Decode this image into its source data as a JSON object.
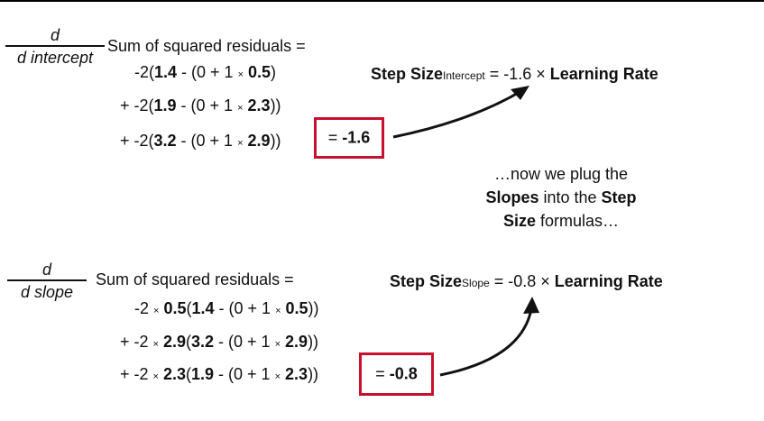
{
  "colors": {
    "box_border": "#c8102e",
    "text": "#111111"
  },
  "intercept": {
    "fraction": {
      "num": "d",
      "den": "d intercept"
    },
    "header": "Sum of squared residuals =",
    "line1": {
      "a": "-2(",
      "b": "1.4",
      "c": " - (0 + 1 ",
      "x": "×",
      "d": " ",
      "e": "0.5",
      "f": ")"
    },
    "line2": {
      "a": "+ -2(",
      "b": "1.9",
      "c": " - (0 + 1 ",
      "x": "×",
      "d": " ",
      "e": "2.3",
      "f": "))"
    },
    "line3": {
      "a": "+ -2(",
      "b": "3.2",
      "c": " - (0 + 1 ",
      "x": "×",
      "d": " ",
      "e": "2.9",
      "f": "))"
    },
    "result": {
      "eq": "= ",
      "val": "-1.6"
    },
    "step": {
      "label": "Step Size",
      "sub": "Intercept",
      "mid": " = -1.6 × ",
      "lr": "Learning Rate"
    }
  },
  "note": {
    "l1": "…now we plug the",
    "l2a": "Slopes",
    "l2b": " into the ",
    "l2c": "Step",
    "l3a": "Size",
    "l3b": " formulas…"
  },
  "slope": {
    "fraction": {
      "num": "d",
      "den": "d slope"
    },
    "header": "Sum of squared residuals =",
    "line1": {
      "a": "-2 ",
      "x1": "×",
      "b": " ",
      "c": "0.5",
      "d": "(",
      "e": "1.4",
      "f": " - (0 + 1 ",
      "x2": "×",
      "g": " ",
      "h": "0.5",
      "i": "))"
    },
    "line2": {
      "a": "+ -2 ",
      "x1": "×",
      "b": " ",
      "c": "2.9",
      "d": "(",
      "e": "3.2",
      "f": " - (0 + 1 ",
      "x2": "×",
      "g": " ",
      "h": "2.9",
      "i": "))"
    },
    "line3": {
      "a": "+ -2 ",
      "x1": "×",
      "b": " ",
      "c": "2.3",
      "d": "(",
      "e": "1.9",
      "f": " - (0 + 1 ",
      "x2": "×",
      "g": " ",
      "h": "2.3",
      "i": "))"
    },
    "result": {
      "eq": "= ",
      "val": "-0.8"
    },
    "step": {
      "label": "Step Size",
      "sub": "Slope",
      "mid": " = -0.8 × ",
      "lr": "Learning Rate"
    }
  }
}
